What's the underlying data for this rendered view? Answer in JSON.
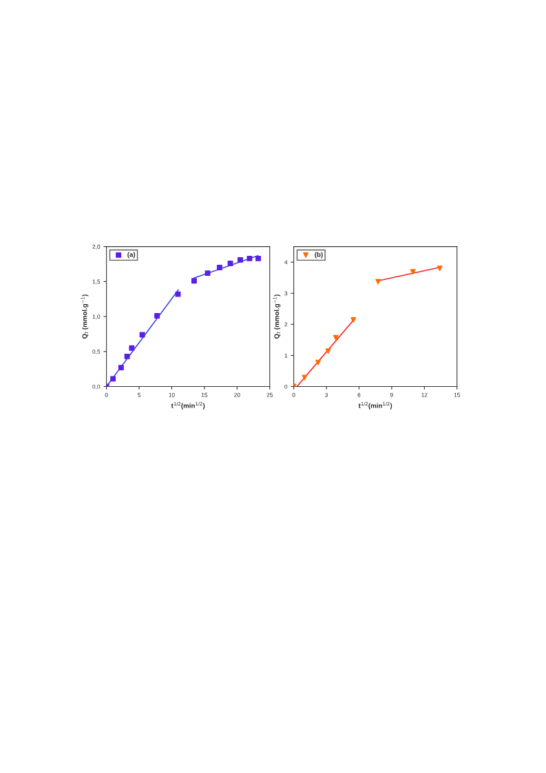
{
  "chart_data": [
    {
      "type": "scatter",
      "xlabel": "t$^{1/2}$(min$^{1/2}$)",
      "ylabel": "Q$_{t}$ (mmol.g$^{−1}$)",
      "legend": "top left",
      "marker": "square",
      "grid": false,
      "xlim": [
        0,
        25
      ],
      "xticks": [
        0,
        5,
        10,
        15,
        20,
        25
      ],
      "ylim": [
        0,
        2.0
      ],
      "yticks": [
        {
          "value": 0,
          "label": "0,0"
        },
        {
          "value": 0.5,
          "label": "0,5"
        },
        {
          "value": 1.0,
          "label": "1,0"
        },
        {
          "value": 1.5,
          "label": "1,5"
        },
        {
          "value": 2.0,
          "label": "2,0"
        }
      ],
      "series": [
        {
          "name": "(a)",
          "color": "#5a1ee6",
          "x": [
            0,
            1,
            2.24,
            3.16,
            3.87,
            5.48,
            7.75,
            10.95,
            13.42,
            15.49,
            17.32,
            18.97,
            20.49,
            21.91,
            23.24
          ],
          "values": [
            0,
            0.11,
            0.27,
            0.43,
            0.55,
            0.74,
            1.01,
            1.32,
            1.51,
            1.62,
            1.7,
            1.76,
            1.81,
            1.83,
            1.83
          ]
        },
        {
          "type": "line",
          "marker": "none",
          "color": "#3a4ae0",
          "x": [
            0,
            11.0
          ],
          "values": [
            0,
            1.38
          ]
        },
        {
          "type": "line",
          "marker": "none",
          "color": "#3a4ae0",
          "x": [
            13.4,
            23.2
          ],
          "values": [
            1.55,
            1.87
          ]
        }
      ]
    },
    {
      "type": "scatter",
      "xlabel": "t$^{1/2}$(min$^{1/2}$)",
      "ylabel": "Q$_{t}$ (mmol.g$^{−1}$)",
      "legend": "top left",
      "marker": "triangle",
      "grid": false,
      "xlim": [
        0,
        15
      ],
      "xticks": [
        0,
        3,
        6,
        9,
        12,
        15
      ],
      "ylim": [
        0,
        4.5
      ],
      "yticks": [
        0,
        1,
        2,
        3,
        4
      ],
      "series": [
        {
          "name": "(b)",
          "color": "#ff6a00",
          "x": [
            0,
            1,
            2.24,
            3.16,
            3.87,
            5.48,
            7.75,
            10.95,
            13.42
          ],
          "values": [
            0,
            0.29,
            0.77,
            1.14,
            1.57,
            2.14,
            3.37,
            3.69,
            3.8
          ]
        },
        {
          "type": "line",
          "marker": "none",
          "color": "#ff2020",
          "x": [
            0.3,
            5.5
          ],
          "values": [
            0,
            2.14
          ]
        },
        {
          "type": "line",
          "marker": "none",
          "color": "#ff2020",
          "x": [
            7.75,
            13.4
          ],
          "values": [
            3.4,
            3.83
          ]
        }
      ]
    }
  ]
}
